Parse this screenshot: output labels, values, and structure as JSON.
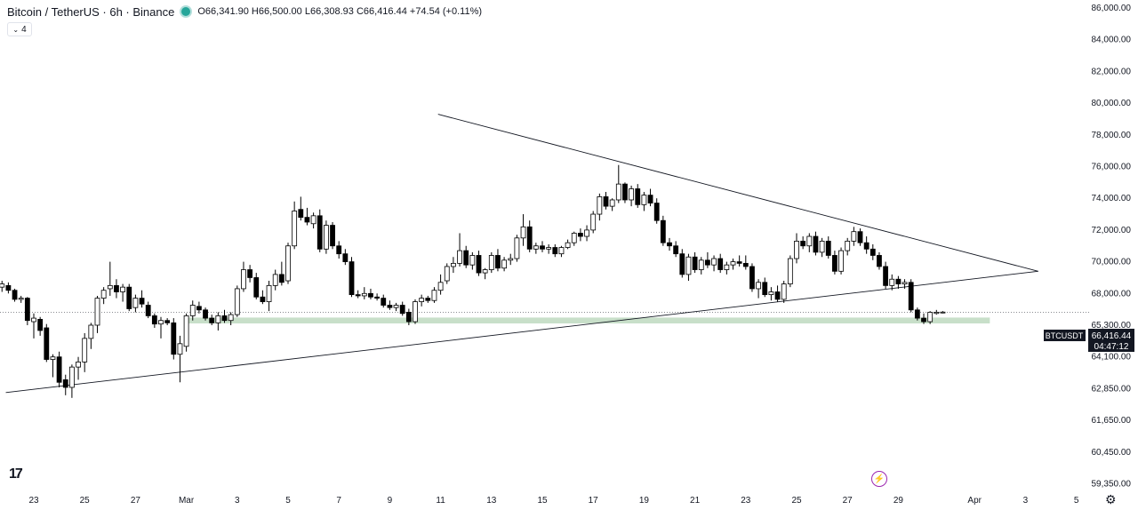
{
  "header": {
    "symbol_title": "Bitcoin / TetherUS · 6h · Binance",
    "ohlc": "O66,341.90 H66,500.00 L66,308.93 C66,416.44 +74.54 (+0.11%)",
    "indicator_count": "4",
    "status_color": "#26a69a"
  },
  "price_label": {
    "symbol": "BTCUSDT",
    "price": "66,416.44",
    "countdown": "04:47:12",
    "value": 66416.44
  },
  "chart_data": {
    "type": "candlestick",
    "y_ticks": [
      {
        "label": "86,000.00",
        "value": 86000
      },
      {
        "label": "84,000.00",
        "value": 84000
      },
      {
        "label": "82,000.00",
        "value": 82000
      },
      {
        "label": "80,000.00",
        "value": 80000
      },
      {
        "label": "78,000.00",
        "value": 78000
      },
      {
        "label": "76,000.00",
        "value": 76000
      },
      {
        "label": "74,000.00",
        "value": 74000
      },
      {
        "label": "72,000.00",
        "value": 72000
      },
      {
        "label": "70,000.00",
        "value": 70000
      },
      {
        "label": "68,000.00",
        "value": 68000
      },
      {
        "label": "65,300.00",
        "value": 65300
      },
      {
        "label": "64,100.00",
        "value": 64100
      },
      {
        "label": "62,850.00",
        "value": 62850
      },
      {
        "label": "61,650.00",
        "value": 61650
      },
      {
        "label": "60,450.00",
        "value": 60450
      },
      {
        "label": "59,350.00",
        "value": 59350
      }
    ],
    "x_ticks": [
      {
        "label": "23",
        "day": 0
      },
      {
        "label": "25",
        "day": 2
      },
      {
        "label": "27",
        "day": 4
      },
      {
        "label": "Mar",
        "day": 6
      },
      {
        "label": "3",
        "day": 8
      },
      {
        "label": "5",
        "day": 10
      },
      {
        "label": "7",
        "day": 12
      },
      {
        "label": "9",
        "day": 14
      },
      {
        "label": "11",
        "day": 16
      },
      {
        "label": "13",
        "day": 18
      },
      {
        "label": "15",
        "day": 20
      },
      {
        "label": "17",
        "day": 22
      },
      {
        "label": "19",
        "day": 24
      },
      {
        "label": "21",
        "day": 26
      },
      {
        "label": "23",
        "day": 28
      },
      {
        "label": "25",
        "day": 30
      },
      {
        "label": "27",
        "day": 32
      },
      {
        "label": "29",
        "day": 34
      },
      {
        "label": "Apr",
        "day": 37
      },
      {
        "label": "3",
        "day": 39
      },
      {
        "label": "5",
        "day": 41
      }
    ],
    "candles": [
      [
        -1.25,
        68400,
        68800,
        68100,
        68600
      ],
      [
        -1.0,
        68500,
        68700,
        68000,
        68200
      ],
      [
        -0.75,
        68200,
        68300,
        67300,
        67500
      ],
      [
        -0.5,
        67500,
        67800,
        67200,
        67600
      ],
      [
        -0.25,
        67600,
        67700,
        65300,
        65700
      ],
      [
        0.0,
        65600,
        66300,
        64800,
        65900
      ],
      [
        0.25,
        65800,
        66000,
        64900,
        65100
      ],
      [
        0.5,
        65200,
        65400,
        63900,
        64000
      ],
      [
        0.75,
        64000,
        64200,
        63300,
        64100
      ],
      [
        1.0,
        64100,
        64300,
        62900,
        63100
      ],
      [
        1.25,
        63200,
        63400,
        62600,
        62900
      ],
      [
        1.5,
        62900,
        63800,
        62500,
        63700
      ],
      [
        1.75,
        63700,
        64100,
        63200,
        63900
      ],
      [
        2.0,
        63900,
        65000,
        63500,
        64800
      ],
      [
        2.25,
        64800,
        65500,
        64400,
        65300
      ],
      [
        2.5,
        65300,
        67800,
        65000,
        67600
      ],
      [
        2.75,
        67600,
        68400,
        67100,
        68200
      ],
      [
        3.0,
        68300,
        70000,
        67800,
        68500
      ],
      [
        3.25,
        68500,
        68900,
        67600,
        68100
      ],
      [
        3.5,
        68100,
        68600,
        67300,
        68400
      ],
      [
        3.75,
        68400,
        68600,
        66500,
        66700
      ],
      [
        4.0,
        66800,
        67900,
        66400,
        67600
      ],
      [
        4.25,
        67600,
        68200,
        66800,
        67100
      ],
      [
        4.5,
        67000,
        67300,
        65900,
        66100
      ],
      [
        4.75,
        66100,
        66300,
        65200,
        65400
      ],
      [
        5.0,
        65400,
        66000,
        64800,
        65700
      ],
      [
        5.25,
        65700,
        65900,
        65300,
        65500
      ],
      [
        5.5,
        65500,
        65900,
        64000,
        64200
      ],
      [
        5.75,
        64200,
        64900,
        63100,
        64600
      ],
      [
        6.0,
        64500,
        66300,
        64300,
        66100
      ],
      [
        6.25,
        66100,
        67400,
        65700,
        67000
      ],
      [
        6.5,
        66900,
        67300,
        66300,
        66600
      ],
      [
        6.75,
        66600,
        66800,
        65700,
        65900
      ],
      [
        7.0,
        65900,
        66200,
        65300,
        65500
      ],
      [
        7.25,
        65500,
        66400,
        65100,
        66100
      ],
      [
        7.5,
        66100,
        66600,
        65500,
        65700
      ],
      [
        7.75,
        65700,
        66400,
        65300,
        66200
      ],
      [
        8.0,
        66200,
        68500,
        66000,
        68300
      ],
      [
        8.25,
        68300,
        70000,
        68100,
        69500
      ],
      [
        8.5,
        69500,
        69800,
        68700,
        69000
      ],
      [
        8.75,
        69000,
        69300,
        67500,
        67700
      ],
      [
        9.0,
        67700,
        68200,
        67100,
        67300
      ],
      [
        9.25,
        67300,
        68800,
        66500,
        68500
      ],
      [
        9.5,
        68500,
        69500,
        68200,
        69200
      ],
      [
        9.75,
        69200,
        70000,
        68500,
        68700
      ],
      [
        10.0,
        68800,
        71200,
        68600,
        71000
      ],
      [
        10.25,
        71000,
        73800,
        70800,
        73200
      ],
      [
        10.5,
        73300,
        74100,
        72600,
        72800
      ],
      [
        10.75,
        72800,
        73400,
        72300,
        72500
      ],
      [
        11.0,
        72400,
        73100,
        72100,
        72900
      ],
      [
        11.25,
        72900,
        73300,
        70600,
        70800
      ],
      [
        11.5,
        70800,
        72600,
        70500,
        72300
      ],
      [
        11.75,
        72300,
        72500,
        70800,
        71000
      ],
      [
        12.0,
        71000,
        71300,
        70200,
        70500
      ],
      [
        12.25,
        70500,
        70800,
        69800,
        70000
      ],
      [
        12.5,
        70000,
        70300,
        67700,
        67900
      ],
      [
        12.75,
        67900,
        68200,
        67600,
        67800
      ],
      [
        13.0,
        67800,
        68400,
        67500,
        68000
      ],
      [
        13.25,
        68000,
        68300,
        67500,
        67700
      ],
      [
        13.5,
        67700,
        68000,
        67400,
        67600
      ],
      [
        13.75,
        67600,
        67900,
        66800,
        67000
      ],
      [
        14.0,
        67000,
        67400,
        66600,
        66800
      ],
      [
        14.25,
        66800,
        67200,
        66500,
        67000
      ],
      [
        14.5,
        67000,
        67300,
        66100,
        66300
      ],
      [
        14.75,
        66400,
        66700,
        65300,
        65600
      ],
      [
        15.0,
        65600,
        67500,
        65400,
        67300
      ],
      [
        15.25,
        67300,
        67900,
        66900,
        67600
      ],
      [
        15.5,
        67600,
        67800,
        67200,
        67400
      ],
      [
        15.75,
        67400,
        68400,
        67200,
        68200
      ],
      [
        16.0,
        68200,
        69200,
        67900,
        68700
      ],
      [
        16.25,
        68800,
        69900,
        68600,
        69700
      ],
      [
        16.5,
        69700,
        70300,
        69300,
        69900
      ],
      [
        16.75,
        69900,
        71800,
        69700,
        70700
      ],
      [
        17.0,
        70700,
        71000,
        69600,
        69800
      ],
      [
        17.25,
        69800,
        70600,
        69500,
        70400
      ],
      [
        17.5,
        70400,
        70700,
        69100,
        69300
      ],
      [
        17.75,
        69300,
        69600,
        68900,
        69500
      ],
      [
        18.0,
        69500,
        70600,
        69300,
        70400
      ],
      [
        18.25,
        70400,
        70800,
        69400,
        69600
      ],
      [
        18.5,
        69600,
        70300,
        69400,
        70100
      ],
      [
        18.75,
        70100,
        70500,
        69800,
        70200
      ],
      [
        19.0,
        70200,
        71700,
        70000,
        71500
      ],
      [
        19.25,
        71500,
        73000,
        71000,
        72200
      ],
      [
        19.5,
        72200,
        72600,
        70600,
        70800
      ],
      [
        19.75,
        70800,
        71200,
        70500,
        71000
      ],
      [
        20.0,
        71000,
        71300,
        70600,
        70800
      ],
      [
        20.25,
        70800,
        71100,
        70500,
        70900
      ],
      [
        20.5,
        70900,
        71100,
        70300,
        70500
      ],
      [
        20.75,
        70500,
        71000,
        70300,
        70900
      ],
      [
        21.0,
        70900,
        71400,
        70800,
        71200
      ],
      [
        21.25,
        71200,
        71900,
        71000,
        71800
      ],
      [
        21.5,
        71800,
        72100,
        71300,
        71600
      ],
      [
        21.75,
        71600,
        72300,
        71300,
        72000
      ],
      [
        22.0,
        72000,
        73200,
        71800,
        73000
      ],
      [
        22.25,
        73000,
        74300,
        72600,
        74100
      ],
      [
        22.5,
        74100,
        74400,
        73300,
        73500
      ],
      [
        22.75,
        73500,
        74000,
        73200,
        73900
      ],
      [
        23.0,
        73900,
        76100,
        73700,
        74900
      ],
      [
        23.25,
        74900,
        75000,
        73700,
        73900
      ],
      [
        23.5,
        73900,
        74800,
        73500,
        74600
      ],
      [
        23.75,
        74600,
        74900,
        73400,
        73600
      ],
      [
        24.0,
        73600,
        74400,
        73200,
        74200
      ],
      [
        24.25,
        74200,
        74600,
        73500,
        73700
      ],
      [
        24.5,
        73700,
        74000,
        72400,
        72600
      ],
      [
        24.75,
        72600,
        72900,
        71000,
        71200
      ],
      [
        25.0,
        71200,
        71500,
        70700,
        71000
      ],
      [
        25.25,
        71000,
        71300,
        70300,
        70500
      ],
      [
        25.5,
        70500,
        70800,
        69000,
        69200
      ],
      [
        25.75,
        69200,
        70500,
        68800,
        70300
      ],
      [
        26.0,
        70300,
        70600,
        69300,
        69500
      ],
      [
        26.25,
        69500,
        70300,
        69200,
        70100
      ],
      [
        26.5,
        70100,
        70600,
        69600,
        69800
      ],
      [
        26.75,
        69800,
        70400,
        69400,
        70200
      ],
      [
        27.0,
        70200,
        70500,
        69300,
        69500
      ],
      [
        27.25,
        69500,
        70000,
        69200,
        69800
      ],
      [
        27.5,
        69800,
        70200,
        69500,
        70000
      ],
      [
        27.75,
        70000,
        70400,
        69700,
        69900
      ],
      [
        28.0,
        69900,
        70400,
        69500,
        69700
      ],
      [
        28.25,
        69700,
        69900,
        68100,
        68300
      ],
      [
        28.5,
        68300,
        68900,
        67600,
        68700
      ],
      [
        28.75,
        68700,
        69000,
        67700,
        67900
      ],
      [
        29.0,
        67900,
        68400,
        67400,
        68100
      ],
      [
        29.25,
        68100,
        68500,
        67300,
        67500
      ],
      [
        29.5,
        67500,
        68800,
        67200,
        68600
      ],
      [
        29.75,
        68600,
        70400,
        68400,
        70200
      ],
      [
        30.0,
        70200,
        71800,
        69900,
        71300
      ],
      [
        30.25,
        71300,
        71600,
        70800,
        71000
      ],
      [
        30.5,
        71000,
        71800,
        70600,
        71600
      ],
      [
        30.75,
        71600,
        71900,
        70400,
        70600
      ],
      [
        31.0,
        70600,
        71500,
        70300,
        71300
      ],
      [
        31.25,
        71300,
        71600,
        70200,
        70400
      ],
      [
        31.5,
        70400,
        70700,
        69200,
        69400
      ],
      [
        31.75,
        69400,
        70900,
        69200,
        70700
      ],
      [
        32.0,
        70700,
        71500,
        70400,
        71300
      ],
      [
        32.25,
        71300,
        72200,
        71000,
        71900
      ],
      [
        32.5,
        71900,
        72100,
        71000,
        71200
      ],
      [
        32.75,
        71200,
        71600,
        70500,
        70800
      ],
      [
        33.0,
        70800,
        71100,
        70100,
        70400
      ],
      [
        33.25,
        70400,
        70600,
        69500,
        69700
      ],
      [
        33.5,
        69700,
        70000,
        68300,
        68500
      ],
      [
        33.75,
        68500,
        69200,
        68200,
        68900
      ],
      [
        34.0,
        68900,
        69100,
        68300,
        68600
      ],
      [
        34.25,
        68600,
        68900,
        68300,
        68700
      ],
      [
        34.5,
        68700,
        68900,
        66400,
        66600
      ],
      [
        34.75,
        66600,
        66800,
        65700,
        65900
      ],
      [
        35.0,
        65900,
        66300,
        65400,
        65600
      ],
      [
        35.25,
        65600,
        66500,
        65400,
        66400
      ],
      [
        35.5,
        66300,
        66600,
        66200,
        66400
      ],
      [
        35.75,
        66341.9,
        66500,
        66308.93,
        66416.44
      ]
    ],
    "trendlines": [
      {
        "from": [
          -1.1,
          62700
        ],
        "to": [
          39.5,
          69400
        ]
      },
      {
        "from": [
          15.9,
          79300
        ],
        "to": [
          39.5,
          69400
        ]
      }
    ],
    "support_zone": {
      "from_day": 6.0,
      "to_day": 37.6,
      "low": 65450,
      "high": 65950,
      "color": "#c8dfc9"
    },
    "current_price_line": 66416.44,
    "bull_color": "#ffffff",
    "bear_color": "#000000",
    "grid": false
  }
}
